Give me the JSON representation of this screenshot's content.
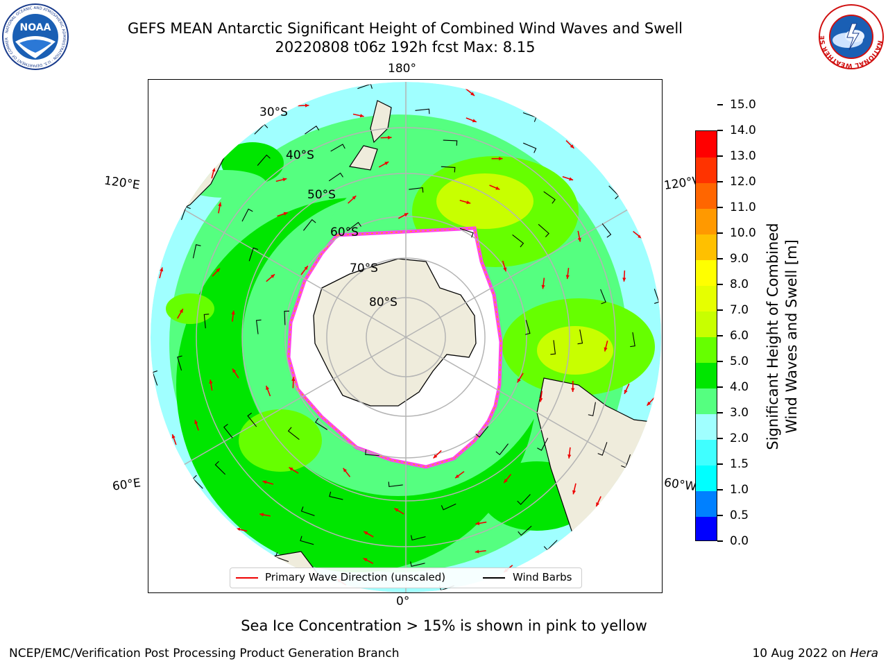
{
  "header": {
    "title_line1": "GEFS MEAN Antarctic Significant Height of Combined Wind Waves and Swell",
    "title_line2": "20220808 t06z 192h fcst   Max: 8.15"
  },
  "logos": {
    "noaa_text": "NOAA",
    "noaa_ring_text": "NATIONAL OCEANIC AND ATMOSPHERIC ADMINISTRATION · U.S. DEPARTMENT OF COMMERCE",
    "nws_ring_text": "NATIONAL WEATHER SERVICE"
  },
  "map": {
    "longitude_labels": {
      "top": "180°",
      "bottom": "0°",
      "upper_left": "120°E",
      "upper_right": "120°W",
      "lower_left": "60°E",
      "lower_right": "60°W"
    },
    "latitude_labels": [
      "30°S",
      "40°S",
      "50°S",
      "60°S",
      "70°S",
      "80°S"
    ],
    "colors": {
      "land": "#efecdc",
      "ice_free_sea_ice_edge": "#ff44ee",
      "wave_arrow": "#ee0000",
      "wind_barb": "#000000",
      "grid": "#b4b4b4"
    }
  },
  "colorbar": {
    "label_line1": "Significant Height of Combined",
    "label_line2": "Wind Waves and Swell [m]",
    "ticks": [
      "0.0",
      "0.5",
      "1.0",
      "1.5",
      "2.0",
      "3.0",
      "4.0",
      "5.0",
      "6.0",
      "7.0",
      "8.0",
      "9.0",
      "10.0",
      "11.0",
      "12.0",
      "13.0",
      "14.0",
      "15.0"
    ],
    "colors": [
      "#0000ff",
      "#0080ff",
      "#00ffff",
      "#40ffff",
      "#a0ffff",
      "#55ff80",
      "#00e600",
      "#66ff00",
      "#c8ff00",
      "#e6ff00",
      "#ffff00",
      "#ffc000",
      "#ff9900",
      "#ff6600",
      "#ff3300",
      "#ff0000"
    ]
  },
  "legend": {
    "wave_label": "Primary Wave Direction (unscaled)",
    "wind_label": "Wind Barbs"
  },
  "footer": {
    "sea_ice_note": "Sea Ice Concentration > 15% is shown in pink to yellow",
    "credit": "NCEP/EMC/Verification Post Processing Product Generation Branch",
    "date_prefix": "10 Aug 2022 on ",
    "date_machine": "Hera"
  }
}
